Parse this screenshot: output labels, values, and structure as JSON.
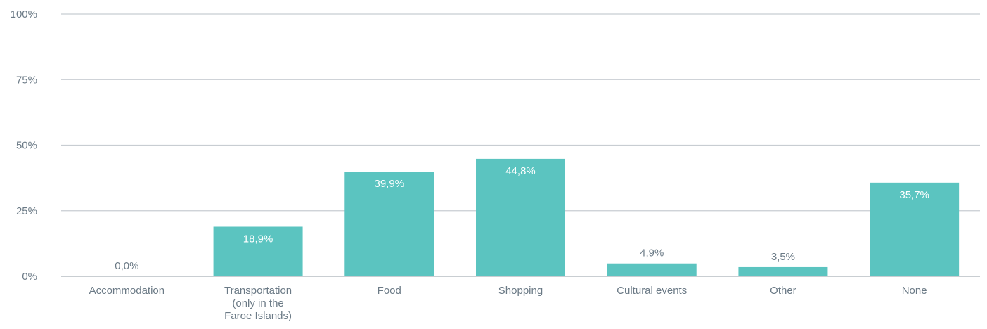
{
  "chart_data": {
    "type": "bar",
    "categories": [
      "Accommodation",
      "Transportation (only in the Faroe Islands)",
      "Food",
      "Shopping",
      "Cultural events",
      "Other",
      "None"
    ],
    "category_lines": [
      [
        "Accommodation"
      ],
      [
        "Transportation",
        "(only in the",
        "Faroe Islands)"
      ],
      [
        "Food"
      ],
      [
        "Shopping"
      ],
      [
        "Cultural events"
      ],
      [
        "Other"
      ],
      [
        "None"
      ]
    ],
    "values": [
      0.0,
      18.9,
      39.9,
      44.8,
      4.9,
      3.5,
      35.7
    ],
    "data_labels": [
      "0,0%",
      "18,9%",
      "39,9%",
      "44,8%",
      "4,9%",
      "3,5%",
      "35,7%"
    ],
    "yticks": [
      0,
      25,
      50,
      75,
      100
    ],
    "ytick_labels": [
      "0%",
      "25%",
      "50%",
      "75%",
      "100%"
    ],
    "ylim": [
      0,
      100
    ],
    "grid": true,
    "bar_color": "#5bc4c0",
    "label_inside_color": "#ffffff",
    "label_outside_color": "#6b7a86"
  }
}
